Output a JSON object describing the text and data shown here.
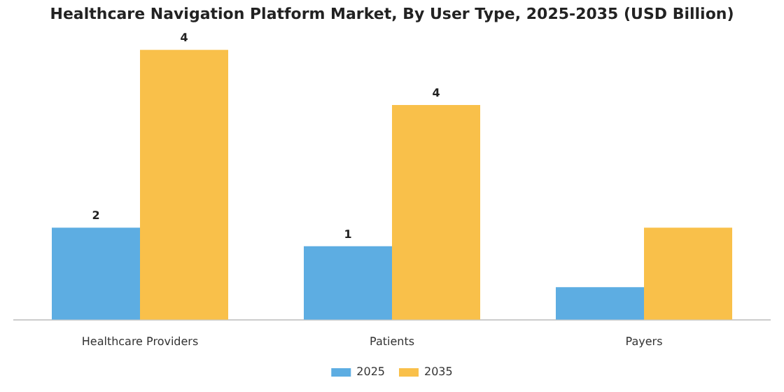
{
  "chart_data": {
    "type": "bar",
    "title": "Healthcare Navigation Platform Market, By User Type, 2025-2035 (USD Billion)",
    "tick_labels": "x",
    "categories": [
      "Healthcare Providers",
      "Patients",
      "Payers"
    ],
    "series": [
      {
        "name": "2025",
        "color": "#5dade2",
        "values": [
          1.5,
          1.2,
          0.53
        ],
        "value_labels": [
          "2",
          "1",
          null
        ]
      },
      {
        "name": "2035",
        "color": "#f9c04a",
        "values": [
          4.4,
          3.5,
          1.5
        ],
        "value_labels": [
          "4",
          "4",
          null
        ]
      }
    ],
    "legend": "bottom",
    "grid": false
  }
}
